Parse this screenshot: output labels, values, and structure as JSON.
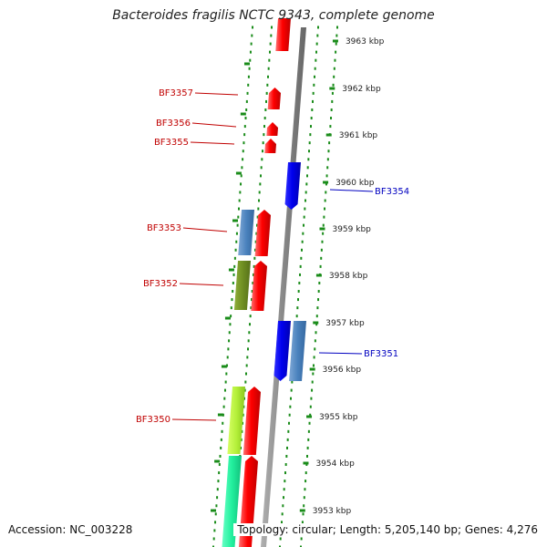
{
  "title": "Bacteroides fragilis NCTC 9343, complete genome",
  "footer": {
    "accession": "Accession: NC_003228",
    "topology": "Topology: circular; Length: 5,205,140 bp; Genes: 4,276"
  },
  "colors": {
    "left_label": "#c00000",
    "right_label": "#0000c0",
    "track_dots": "#1a8c1a",
    "tick": "#1a8c1a",
    "backbone": "#888888"
  },
  "scale_labels": [
    "3963 kbp",
    "3962 kbp",
    "3961 kbp",
    "3960 kbp",
    "3959 kbp",
    "3958 kbp",
    "3957 kbp",
    "3956 kbp",
    "3955 kbp",
    "3954 kbp",
    "3953 kbp"
  ],
  "gene_labels_left": [
    "BF3357",
    "BF3356",
    "BF3355",
    "BF3353",
    "BF3352",
    "BF3350"
  ],
  "gene_labels_right": [
    "BF3354",
    "BF3351"
  ]
}
